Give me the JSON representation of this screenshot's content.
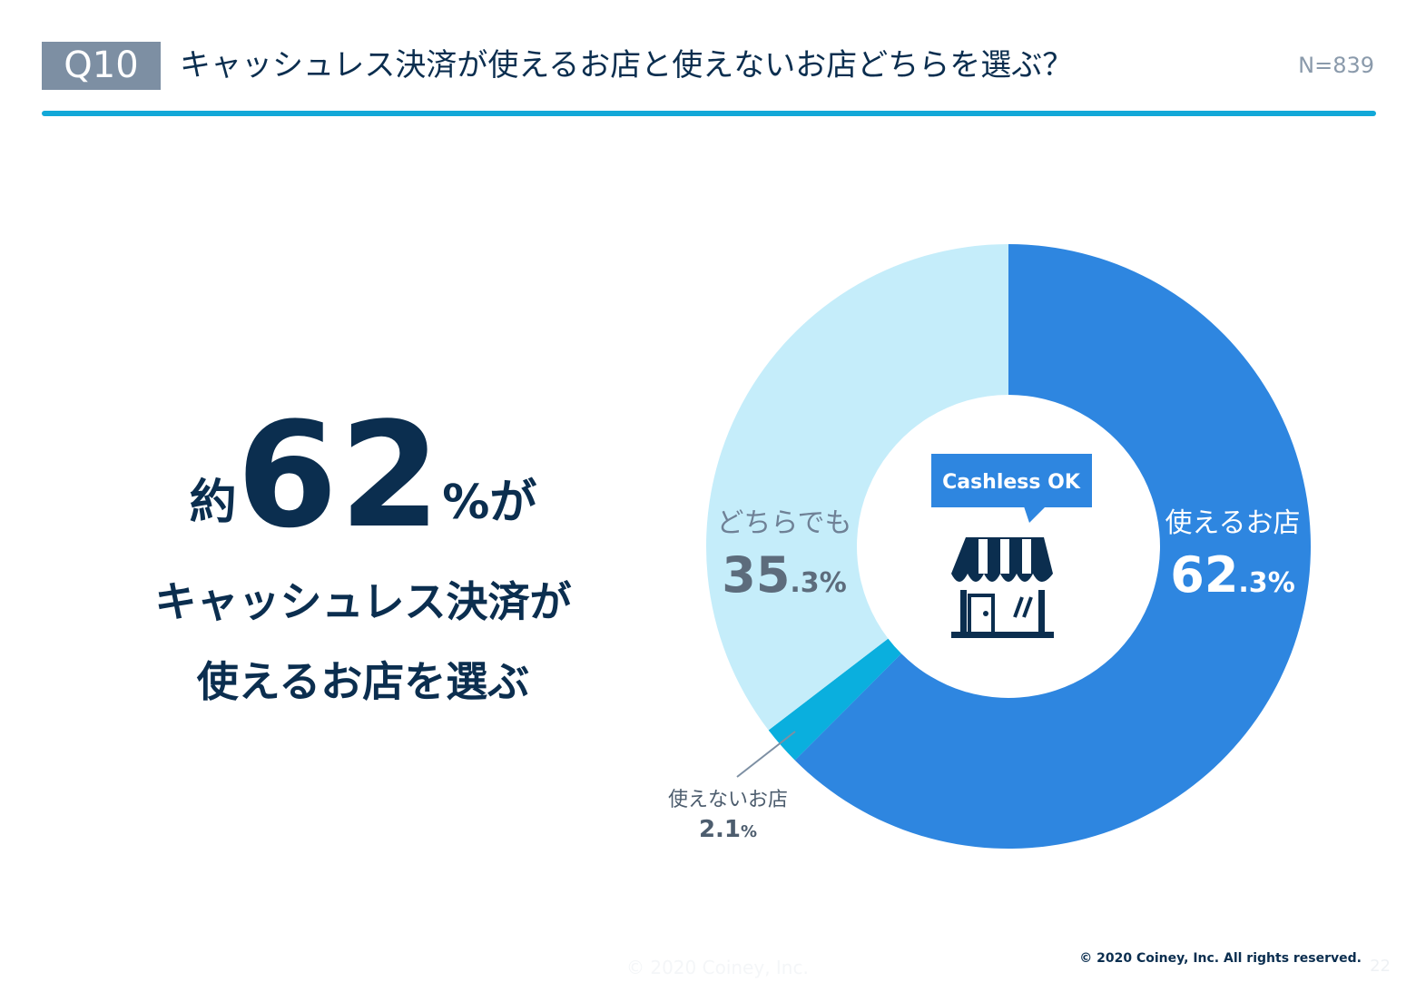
{
  "header": {
    "badge": "Q10",
    "title": "キャッシュレス決済が使えるお店と使えないお店どちらを選ぶ？",
    "n": "N=839"
  },
  "headline": {
    "pre": "約",
    "num": "62",
    "post": "%が",
    "line2": "キャッシュレス決済が",
    "line3": "使えるお店を選ぶ"
  },
  "center": {
    "sign_text": "Cashless OK",
    "icon": "storefront-icon"
  },
  "chart_data": {
    "type": "pie",
    "donut": true,
    "categories": [
      "使えるお店",
      "使えないお店",
      "どちらでも"
    ],
    "values": [
      62.3,
      2.1,
      35.3
    ],
    "labels": [
      {
        "name": "使えるお店",
        "int": "62",
        "dec": ".3",
        "pct": "%"
      },
      {
        "name": "使えないお店",
        "int": "2.1",
        "dec": "",
        "pct": "%"
      },
      {
        "name": "どちらでも",
        "int": "35",
        "dec": ".3",
        "pct": "%"
      }
    ],
    "colors": [
      "#2e86e0",
      "#0aafde",
      "#c5edfa"
    ]
  },
  "footer": {
    "copyright": "© 2020 Coiney, Inc. All rights reserved.",
    "ghost": "© 2020 Coiney, Inc.",
    "page": "22"
  }
}
